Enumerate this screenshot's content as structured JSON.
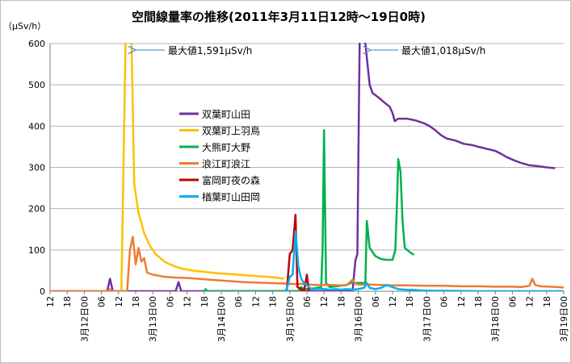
{
  "chart_data": {
    "type": "line",
    "title": "空間線量率の推移(2011年3月11日12時～19日0時)",
    "ylabel": "（μSv/h）",
    "xlabel": "",
    "ylim": [
      0,
      600
    ],
    "yticks": [
      "0",
      "100",
      "200",
      "300",
      "400",
      "500",
      "600"
    ],
    "x_unit": "hours since 3月11日 12時",
    "xlim": [
      0,
      180
    ],
    "x_tick_labels": [
      {
        "h": 0,
        "label": "12"
      },
      {
        "h": 6,
        "label": "18"
      },
      {
        "h": 12,
        "label": "3月12日00"
      },
      {
        "h": 18,
        "label": "06"
      },
      {
        "h": 24,
        "label": "12"
      },
      {
        "h": 30,
        "label": "18"
      },
      {
        "h": 36,
        "label": "3月13日00"
      },
      {
        "h": 42,
        "label": "06"
      },
      {
        "h": 48,
        "label": "12"
      },
      {
        "h": 54,
        "label": "18"
      },
      {
        "h": 60,
        "label": "3月14日00"
      },
      {
        "h": 66,
        "label": "06"
      },
      {
        "h": 72,
        "label": "12"
      },
      {
        "h": 78,
        "label": "18"
      },
      {
        "h": 84,
        "label": "3月15日00"
      },
      {
        "h": 90,
        "label": "06"
      },
      {
        "h": 96,
        "label": "12"
      },
      {
        "h": 102,
        "label": "18"
      },
      {
        "h": 108,
        "label": "3月16日00"
      },
      {
        "h": 114,
        "label": "06"
      },
      {
        "h": 120,
        "label": "12"
      },
      {
        "h": 126,
        "label": "18"
      },
      {
        "h": 132,
        "label": "3月17日00"
      },
      {
        "h": 138,
        "label": "06"
      },
      {
        "h": 144,
        "label": "12"
      },
      {
        "h": 150,
        "label": "18"
      },
      {
        "h": 156,
        "label": "3月18日00"
      },
      {
        "h": 162,
        "label": "06"
      },
      {
        "h": 168,
        "label": "12"
      },
      {
        "h": 174,
        "label": "18"
      },
      {
        "h": 180,
        "label": "3月19日00"
      }
    ],
    "legend_position": "center-left",
    "series": [
      {
        "name": "双葉町山田",
        "color": "#7030A0",
        "points": [
          [
            0,
            0
          ],
          [
            20,
            0
          ],
          [
            21,
            30
          ],
          [
            22,
            0
          ],
          [
            44,
            0
          ],
          [
            45,
            22
          ],
          [
            46,
            0
          ],
          [
            106,
            0
          ],
          [
            107,
            75
          ],
          [
            107.7,
            90
          ],
          [
            108,
            300
          ],
          [
            108.5,
            620
          ],
          [
            110.5,
            600
          ],
          [
            112,
            500
          ],
          [
            113,
            480
          ],
          [
            115,
            470
          ],
          [
            117,
            458
          ],
          [
            119,
            447
          ],
          [
            120,
            432
          ],
          [
            120.8,
            412
          ],
          [
            122,
            418
          ],
          [
            125,
            418
          ],
          [
            128,
            414
          ],
          [
            131,
            407
          ],
          [
            133,
            400
          ],
          [
            135,
            390
          ],
          [
            137,
            378
          ],
          [
            139,
            370
          ],
          [
            142,
            365
          ],
          [
            145,
            357
          ],
          [
            148,
            354
          ],
          [
            150,
            350
          ],
          [
            153,
            345
          ],
          [
            156,
            340
          ],
          [
            158,
            333
          ],
          [
            160,
            325
          ],
          [
            163,
            316
          ],
          [
            165,
            311
          ],
          [
            168,
            305
          ],
          [
            171,
            303
          ],
          [
            174,
            300
          ],
          [
            177,
            298
          ]
        ]
      },
      {
        "name": "双葉町上羽鳥",
        "color": "#FFC000",
        "points": [
          [
            25,
            0
          ],
          [
            26,
            420
          ],
          [
            26.5,
            620
          ],
          [
            28.5,
            620
          ],
          [
            29.5,
            260
          ],
          [
            31,
            190
          ],
          [
            33,
            140
          ],
          [
            35,
            110
          ],
          [
            37,
            90
          ],
          [
            40,
            72
          ],
          [
            43,
            62
          ],
          [
            46,
            55
          ],
          [
            50,
            50
          ],
          [
            54,
            47
          ],
          [
            58,
            44
          ],
          [
            62,
            42
          ],
          [
            66,
            40
          ],
          [
            70,
            38
          ],
          [
            74,
            36
          ],
          [
            78,
            34
          ],
          [
            80,
            32
          ],
          [
            82,
            30
          ]
        ]
      },
      {
        "name": "大熊町大野",
        "color": "#00B050",
        "points": [
          [
            54,
            0
          ],
          [
            54.5,
            5
          ],
          [
            55,
            0
          ],
          [
            87,
            0
          ],
          [
            88,
            10
          ],
          [
            89,
            5
          ],
          [
            91,
            5
          ],
          [
            95,
            10
          ],
          [
            95.5,
            100
          ],
          [
            96,
            390
          ],
          [
            96.7,
            20
          ],
          [
            98,
            10
          ],
          [
            104,
            15
          ],
          [
            105.5,
            20
          ],
          [
            106,
            20
          ],
          [
            110.5,
            20
          ],
          [
            111,
            170
          ],
          [
            112,
            105
          ],
          [
            114,
            85
          ],
          [
            116,
            78
          ],
          [
            118,
            76
          ],
          [
            120,
            76
          ],
          [
            121,
            100
          ],
          [
            121.5,
            200
          ],
          [
            122,
            320
          ],
          [
            122.8,
            290
          ],
          [
            123.5,
            170
          ],
          [
            124.3,
            105
          ],
          [
            126,
            95
          ],
          [
            127.5,
            88
          ]
        ]
      },
      {
        "name": "浪江町浪江",
        "color": "#ED7D31",
        "points": [
          [
            0,
            0
          ],
          [
            20,
            0
          ],
          [
            21,
            5
          ],
          [
            22,
            0
          ],
          [
            27,
            0
          ],
          [
            28,
            100
          ],
          [
            29,
            132
          ],
          [
            30,
            65
          ],
          [
            31,
            105
          ],
          [
            32,
            72
          ],
          [
            33,
            80
          ],
          [
            34,
            45
          ],
          [
            36,
            40
          ],
          [
            40,
            35
          ],
          [
            44,
            33
          ],
          [
            48,
            32
          ],
          [
            52,
            30
          ],
          [
            56,
            28
          ],
          [
            60,
            26
          ],
          [
            64,
            24
          ],
          [
            68,
            22
          ],
          [
            72,
            21
          ],
          [
            76,
            20
          ],
          [
            80,
            19
          ],
          [
            84,
            18
          ],
          [
            86,
            17
          ],
          [
            88,
            18
          ],
          [
            90,
            16
          ],
          [
            94,
            15
          ],
          [
            98,
            15
          ],
          [
            102,
            14
          ],
          [
            104,
            15
          ],
          [
            106,
            28
          ],
          [
            107,
            18
          ],
          [
            108,
            16
          ],
          [
            112,
            16
          ],
          [
            116,
            15
          ],
          [
            120,
            14
          ],
          [
            126,
            14
          ],
          [
            132,
            13
          ],
          [
            138,
            13
          ],
          [
            144,
            12
          ],
          [
            150,
            12
          ],
          [
            156,
            11
          ],
          [
            162,
            11
          ],
          [
            165,
            10
          ],
          [
            168,
            13
          ],
          [
            169,
            30
          ],
          [
            170,
            15
          ],
          [
            172,
            12
          ],
          [
            175,
            11
          ],
          [
            178,
            10
          ],
          [
            180,
            9
          ]
        ]
      },
      {
        "name": "富岡町夜の森",
        "color": "#C00000",
        "points": [
          [
            82,
            0
          ],
          [
            83,
            5
          ],
          [
            84,
            90
          ],
          [
            85,
            100
          ],
          [
            86,
            185
          ],
          [
            86.7,
            10
          ],
          [
            88,
            5
          ],
          [
            89,
            0
          ],
          [
            90,
            40
          ],
          [
            90.6,
            5
          ],
          [
            91,
            0
          ]
        ]
      },
      {
        "name": "楢葉町山田岡",
        "color": "#00B0F0",
        "points": [
          [
            82,
            0
          ],
          [
            83,
            5
          ],
          [
            84,
            35
          ],
          [
            85,
            40
          ],
          [
            86,
            145
          ],
          [
            87,
            60
          ],
          [
            88,
            30
          ],
          [
            89,
            20
          ],
          [
            90,
            15
          ],
          [
            91,
            8
          ],
          [
            92,
            5
          ],
          [
            94,
            6
          ],
          [
            96,
            5
          ],
          [
            98,
            4
          ],
          [
            100,
            5
          ],
          [
            102,
            4
          ],
          [
            104,
            5
          ],
          [
            106,
            4
          ],
          [
            108,
            5
          ],
          [
            110,
            8
          ],
          [
            111,
            20
          ],
          [
            112,
            8
          ],
          [
            114,
            5
          ],
          [
            116,
            8
          ],
          [
            118,
            15
          ],
          [
            120,
            10
          ],
          [
            122,
            5
          ],
          [
            124,
            4
          ],
          [
            128,
            3
          ],
          [
            130,
            2
          ],
          [
            135,
            1
          ],
          [
            140,
            1
          ],
          [
            150,
            0
          ],
          [
            160,
            0
          ],
          [
            170,
            0
          ],
          [
            180,
            0
          ]
        ]
      }
    ],
    "annotations": [
      {
        "text": "最大値1,591μSv/h",
        "points_to_series": "双葉町上羽鳥"
      },
      {
        "text": "最大値1,018μSv/h",
        "points_to_series": "双葉町山田"
      }
    ]
  }
}
